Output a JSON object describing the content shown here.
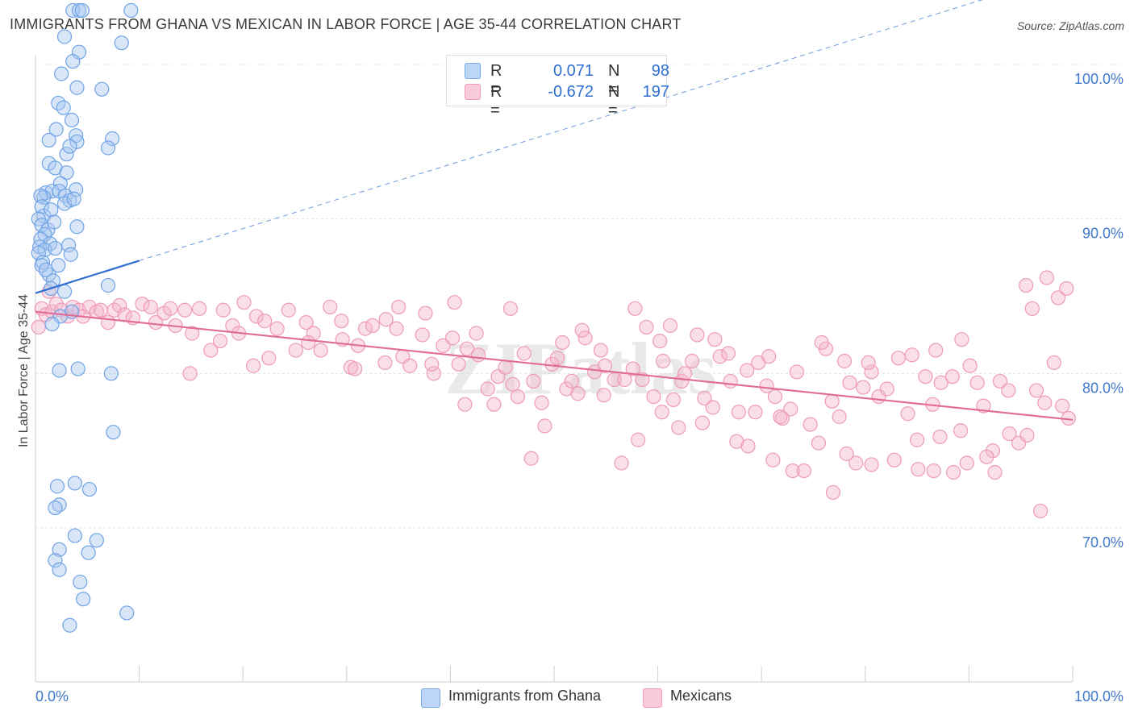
{
  "header": {
    "title": "IMMIGRANTS FROM GHANA VS MEXICAN IN LABOR FORCE | AGE 35-44 CORRELATION CHART",
    "source": "Source: ZipAtlas.com"
  },
  "watermark": "ZIPatlas",
  "legend": {
    "rows": [
      {
        "r_label": "R =",
        "r_value": "0.071",
        "n_label": "N =",
        "n_value": "98",
        "color": "#a9c8f0"
      },
      {
        "r_label": "R =",
        "r_value": "-0.672",
        "n_label": "N =",
        "n_value": "197",
        "color": "#f5b6cb"
      }
    ]
  },
  "bottom_legend": [
    {
      "label": "Immigrants from Ghana",
      "color": "#a9c8f0"
    },
    {
      "label": "Mexicans",
      "color": "#f5b6cb"
    }
  ],
  "chart_data": {
    "type": "scatter",
    "ylabel": "In Labor Force | Age 35-44",
    "xlabel": "",
    "xlim": [
      0,
      100
    ],
    "ylim": [
      60,
      100
    ],
    "x_tick_labels": [
      "0.0%",
      "100.0%"
    ],
    "y_tick_labels": [
      "100.0%",
      "90.0%",
      "80.0%",
      "70.0%"
    ],
    "y_ticks": [
      100,
      90,
      80,
      70
    ],
    "grid": true,
    "series": [
      {
        "name": "Immigrants from Ghana",
        "color": "#6fa3e6",
        "fill": "#a9c8f0",
        "trend": {
          "x": [
            0,
            10
          ],
          "y": [
            85.2,
            87.3
          ],
          "dashed_to": [
            100,
            106.0
          ],
          "color": "#2f6fd0"
        },
        "points": [
          [
            3.6,
            103.5
          ],
          [
            4.2,
            103.5
          ],
          [
            4.5,
            103.5
          ],
          [
            9.2,
            103.5
          ],
          [
            2.8,
            101.8
          ],
          [
            8.3,
            101.4
          ],
          [
            4.2,
            100.8
          ],
          [
            3.6,
            100.2
          ],
          [
            2.5,
            99.4
          ],
          [
            4.0,
            98.5
          ],
          [
            6.4,
            98.4
          ],
          [
            2.2,
            97.5
          ],
          [
            2.7,
            97.2
          ],
          [
            3.5,
            96.4
          ],
          [
            2.0,
            95.8
          ],
          [
            1.3,
            95.1
          ],
          [
            3.9,
            95.4
          ],
          [
            7.4,
            95.2
          ],
          [
            4.0,
            95.0
          ],
          [
            7.0,
            94.6
          ],
          [
            3.0,
            94.2
          ],
          [
            3.3,
            94.7
          ],
          [
            1.3,
            93.6
          ],
          [
            1.9,
            93.3
          ],
          [
            3.0,
            93.0
          ],
          [
            2.4,
            92.3
          ],
          [
            3.9,
            91.9
          ],
          [
            1.0,
            91.7
          ],
          [
            1.6,
            91.8
          ],
          [
            2.3,
            91.8
          ],
          [
            2.9,
            91.5
          ],
          [
            0.8,
            91.4
          ],
          [
            3.3,
            91.2
          ],
          [
            0.5,
            91.5
          ],
          [
            0.6,
            90.8
          ],
          [
            0.8,
            90.2
          ],
          [
            1.5,
            90.6
          ],
          [
            2.8,
            91.0
          ],
          [
            3.7,
            91.3
          ],
          [
            0.3,
            90.0
          ],
          [
            0.6,
            89.6
          ],
          [
            1.2,
            89.3
          ],
          [
            1.8,
            89.8
          ],
          [
            4.0,
            89.5
          ],
          [
            0.9,
            89.0
          ],
          [
            0.5,
            88.7
          ],
          [
            1.4,
            88.4
          ],
          [
            0.4,
            88.2
          ],
          [
            0.9,
            88.0
          ],
          [
            0.3,
            87.8
          ],
          [
            1.9,
            88.1
          ],
          [
            3.2,
            88.3
          ],
          [
            0.7,
            87.2
          ],
          [
            2.2,
            87.0
          ],
          [
            1.3,
            86.4
          ],
          [
            3.4,
            87.7
          ],
          [
            0.6,
            87.0
          ],
          [
            1.0,
            86.7
          ],
          [
            1.7,
            86.0
          ],
          [
            1.5,
            85.5
          ],
          [
            2.8,
            85.3
          ],
          [
            7.0,
            85.7
          ],
          [
            3.5,
            84.0
          ],
          [
            2.4,
            83.7
          ],
          [
            1.6,
            83.2
          ],
          [
            4.1,
            80.3
          ],
          [
            2.3,
            80.2
          ],
          [
            7.3,
            80.0
          ],
          [
            7.5,
            76.2
          ],
          [
            2.1,
            72.7
          ],
          [
            3.8,
            72.9
          ],
          [
            2.3,
            71.5
          ],
          [
            5.2,
            72.5
          ],
          [
            1.9,
            71.3
          ],
          [
            3.8,
            69.5
          ],
          [
            5.9,
            69.2
          ],
          [
            2.3,
            68.6
          ],
          [
            5.1,
            68.4
          ],
          [
            1.9,
            67.9
          ],
          [
            2.3,
            67.3
          ],
          [
            4.3,
            66.5
          ],
          [
            4.6,
            65.4
          ],
          [
            8.8,
            64.5
          ],
          [
            3.3,
            63.7
          ]
        ]
      },
      {
        "name": "Mexicans",
        "color": "#ee9ab8",
        "fill": "#f5b6cb",
        "trend": {
          "x": [
            0,
            100
          ],
          "y": [
            84.0,
            77.0
          ],
          "color": "#e06c95"
        },
        "points": [
          [
            0.3,
            83.0
          ],
          [
            0.6,
            84.2
          ],
          [
            1.0,
            83.8
          ],
          [
            1.3,
            85.3
          ],
          [
            1.6,
            84.0
          ],
          [
            2.0,
            84.5
          ],
          [
            2.5,
            84.1
          ],
          [
            3.1,
            83.7
          ],
          [
            3.6,
            84.3
          ],
          [
            4.2,
            84.1
          ],
          [
            4.6,
            83.7
          ],
          [
            5.2,
            84.3
          ],
          [
            5.9,
            84.0
          ],
          [
            6.3,
            84.1
          ],
          [
            7.0,
            83.3
          ],
          [
            7.6,
            84.1
          ],
          [
            8.1,
            84.4
          ],
          [
            8.6,
            83.8
          ],
          [
            9.4,
            83.6
          ],
          [
            10.3,
            84.5
          ],
          [
            11.1,
            84.3
          ],
          [
            11.6,
            83.3
          ],
          [
            12.4,
            83.9
          ],
          [
            13.0,
            84.2
          ],
          [
            13.5,
            83.1
          ],
          [
            14.4,
            84.1
          ],
          [
            15.1,
            82.6
          ],
          [
            15.8,
            84.2
          ],
          [
            16.9,
            81.5
          ],
          [
            17.8,
            82.1
          ],
          [
            18.1,
            84.1
          ],
          [
            19.0,
            83.1
          ],
          [
            19.6,
            82.6
          ],
          [
            20.1,
            84.6
          ],
          [
            21.3,
            83.7
          ],
          [
            22.1,
            83.4
          ],
          [
            22.5,
            81.0
          ],
          [
            23.3,
            82.9
          ],
          [
            24.4,
            84.1
          ],
          [
            25.1,
            81.5
          ],
          [
            26.1,
            83.3
          ],
          [
            26.8,
            82.6
          ],
          [
            27.5,
            81.5
          ],
          [
            28.4,
            84.3
          ],
          [
            29.6,
            82.2
          ],
          [
            30.4,
            80.4
          ],
          [
            31.1,
            81.8
          ],
          [
            31.8,
            82.9
          ],
          [
            32.5,
            83.1
          ],
          [
            33.8,
            83.5
          ],
          [
            34.8,
            82.9
          ],
          [
            35.4,
            81.1
          ],
          [
            36.1,
            80.5
          ],
          [
            37.3,
            82.5
          ],
          [
            38.4,
            80.0
          ],
          [
            39.3,
            81.8
          ],
          [
            40.2,
            82.3
          ],
          [
            40.8,
            80.6
          ],
          [
            41.6,
            81.6
          ],
          [
            42.7,
            81.2
          ],
          [
            43.6,
            79.0
          ],
          [
            44.6,
            79.8
          ],
          [
            45.3,
            80.4
          ],
          [
            46.0,
            79.3
          ],
          [
            47.1,
            81.3
          ],
          [
            48.0,
            79.5
          ],
          [
            48.8,
            78.1
          ],
          [
            49.8,
            80.6
          ],
          [
            50.3,
            81.0
          ],
          [
            51.2,
            79.0
          ],
          [
            52.3,
            78.7
          ],
          [
            53.0,
            82.3
          ],
          [
            53.9,
            80.1
          ],
          [
            54.9,
            80.5
          ],
          [
            55.8,
            79.6
          ],
          [
            56.8,
            79.6
          ],
          [
            57.6,
            80.3
          ],
          [
            58.5,
            79.6
          ],
          [
            59.6,
            78.5
          ],
          [
            60.5,
            80.8
          ],
          [
            61.5,
            78.3
          ],
          [
            62.3,
            79.5
          ],
          [
            63.3,
            80.8
          ],
          [
            64.5,
            78.4
          ],
          [
            65.3,
            77.8
          ],
          [
            66.0,
            81.1
          ],
          [
            67.0,
            79.5
          ],
          [
            67.8,
            77.5
          ],
          [
            68.6,
            80.2
          ],
          [
            69.4,
            77.5
          ],
          [
            70.5,
            79.2
          ],
          [
            71.3,
            78.5
          ],
          [
            72.0,
            77.1
          ],
          [
            72.8,
            77.7
          ],
          [
            73.4,
            80.1
          ],
          [
            74.7,
            76.7
          ],
          [
            75.5,
            75.5
          ],
          [
            76.2,
            81.6
          ],
          [
            76.8,
            78.2
          ],
          [
            77.5,
            77.2
          ],
          [
            78.5,
            79.4
          ],
          [
            79.8,
            79.1
          ],
          [
            80.6,
            80.1
          ],
          [
            81.3,
            78.5
          ],
          [
            82.1,
            79.0
          ],
          [
            83.2,
            81.0
          ],
          [
            84.1,
            77.4
          ],
          [
            85.0,
            75.7
          ],
          [
            85.8,
            79.8
          ],
          [
            86.5,
            78.0
          ],
          [
            87.2,
            75.9
          ],
          [
            88.4,
            79.8
          ],
          [
            89.2,
            76.3
          ],
          [
            90.1,
            80.5
          ],
          [
            90.8,
            79.4
          ],
          [
            91.4,
            77.9
          ],
          [
            92.3,
            75.0
          ],
          [
            93.0,
            79.5
          ],
          [
            93.9,
            76.1
          ],
          [
            94.8,
            75.5
          ],
          [
            95.6,
            76.0
          ],
          [
            96.5,
            78.9
          ],
          [
            97.3,
            78.1
          ],
          [
            98.2,
            80.7
          ],
          [
            99.0,
            77.9
          ],
          [
            99.6,
            77.1
          ],
          [
            14.9,
            80.0
          ],
          [
            21.0,
            80.5
          ],
          [
            26.3,
            82.0
          ],
          [
            29.5,
            83.4
          ],
          [
            35.0,
            84.3
          ],
          [
            37.6,
            83.9
          ],
          [
            40.4,
            84.6
          ],
          [
            42.5,
            82.6
          ],
          [
            45.8,
            84.2
          ],
          [
            50.8,
            82.0
          ],
          [
            52.7,
            82.8
          ],
          [
            54.5,
            81.5
          ],
          [
            57.8,
            84.2
          ],
          [
            58.9,
            83.0
          ],
          [
            61.2,
            83.1
          ],
          [
            63.8,
            82.5
          ],
          [
            65.5,
            82.2
          ],
          [
            66.8,
            81.3
          ],
          [
            69.7,
            80.7
          ],
          [
            70.7,
            81.1
          ],
          [
            75.8,
            82.0
          ],
          [
            78.0,
            80.8
          ],
          [
            80.3,
            80.7
          ],
          [
            84.5,
            81.2
          ],
          [
            86.8,
            81.5
          ],
          [
            87.3,
            79.4
          ],
          [
            89.3,
            82.2
          ],
          [
            93.8,
            78.9
          ],
          [
            95.5,
            85.7
          ],
          [
            96.1,
            84.2
          ],
          [
            97.5,
            86.2
          ],
          [
            98.6,
            84.9
          ],
          [
            99.4,
            85.5
          ],
          [
            56.5,
            74.2
          ],
          [
            58.1,
            75.7
          ],
          [
            60.4,
            77.5
          ],
          [
            62.0,
            76.5
          ],
          [
            64.3,
            76.8
          ],
          [
            67.6,
            75.6
          ],
          [
            68.7,
            75.3
          ],
          [
            71.1,
            74.4
          ],
          [
            73.0,
            73.7
          ],
          [
            74.1,
            73.7
          ],
          [
            76.9,
            72.3
          ],
          [
            78.2,
            74.8
          ],
          [
            79.1,
            74.2
          ],
          [
            80.6,
            74.1
          ],
          [
            82.8,
            74.4
          ],
          [
            85.1,
            73.8
          ],
          [
            86.6,
            73.7
          ],
          [
            88.5,
            73.6
          ],
          [
            89.8,
            74.2
          ],
          [
            91.7,
            74.6
          ],
          [
            92.5,
            73.6
          ],
          [
            96.9,
            71.1
          ],
          [
            49.1,
            76.6
          ],
          [
            47.8,
            74.5
          ],
          [
            54.8,
            78.6
          ],
          [
            44.2,
            78.0
          ],
          [
            41.4,
            78.0
          ],
          [
            46.5,
            78.5
          ],
          [
            30.8,
            80.3
          ],
          [
            33.7,
            80.7
          ],
          [
            38.2,
            80.6
          ],
          [
            60.2,
            82.1
          ],
          [
            62.6,
            80.0
          ],
          [
            71.8,
            77.2
          ],
          [
            51.7,
            79.5
          ]
        ]
      }
    ]
  }
}
